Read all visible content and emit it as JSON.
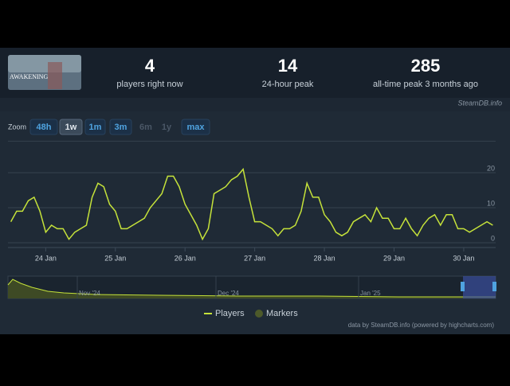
{
  "thumbnail": {
    "label": "AWAKENING"
  },
  "stats": [
    {
      "value": "4",
      "label": "players right now"
    },
    {
      "value": "14",
      "label": "24-hour peak"
    },
    {
      "value": "285",
      "label": "all-time peak 3 months ago"
    }
  ],
  "brand": "SteamDB.info",
  "zoom": {
    "label": "Zoom",
    "buttons": [
      "48h",
      "1w",
      "1m",
      "3m",
      "6m",
      "1y",
      "max"
    ],
    "active_index": 1,
    "disabled_indices": [
      4,
      5
    ]
  },
  "chart_data": {
    "type": "line",
    "x": [
      -12,
      -10,
      -8,
      -6,
      -4,
      -2,
      0,
      2,
      4,
      6,
      8,
      10,
      12,
      14,
      16,
      18,
      20,
      22,
      24,
      26,
      28,
      30,
      32,
      34,
      36,
      38,
      40,
      42,
      44,
      46,
      48,
      50,
      52,
      54,
      56,
      58,
      60,
      62,
      64,
      66,
      68,
      70,
      72,
      74,
      76,
      78,
      80,
      82,
      84,
      86,
      88,
      90,
      92,
      94,
      96,
      98,
      100,
      102,
      104,
      106,
      108,
      110,
      112,
      114,
      116,
      118,
      120,
      122,
      124,
      126,
      128,
      130,
      132,
      134,
      136,
      138,
      140,
      142,
      144,
      146,
      148,
      150,
      152,
      154
    ],
    "series": [
      {
        "name": "Players",
        "color": "#c5e23a",
        "values": [
          6,
          9,
          9,
          12,
          13,
          9,
          3,
          5,
          4,
          4,
          1,
          3,
          4,
          5,
          13,
          17,
          16,
          11,
          9,
          4,
          4,
          5,
          6,
          7,
          10,
          12,
          14,
          19,
          19,
          16,
          11,
          8,
          5,
          1,
          4,
          14,
          15,
          16,
          18,
          19,
          21,
          13,
          6,
          6,
          5,
          4,
          2,
          4,
          4,
          5,
          9,
          17,
          13,
          13,
          8,
          6,
          3,
          2,
          3,
          6,
          7,
          8,
          6,
          10,
          7,
          7,
          4,
          4,
          7,
          4,
          2,
          5,
          7,
          8,
          5,
          8,
          8,
          4,
          4,
          3,
          4,
          5,
          6,
          5
        ]
      }
    ],
    "xlim": [
      -13,
      155
    ],
    "xticks": [
      {
        "value": 0,
        "label": "24 Jan"
      },
      {
        "value": 24,
        "label": "25 Jan"
      },
      {
        "value": 48,
        "label": "26 Jan"
      },
      {
        "value": 72,
        "label": "27 Jan"
      },
      {
        "value": 96,
        "label": "28 Jan"
      },
      {
        "value": 120,
        "label": "29 Jan"
      },
      {
        "value": 144,
        "label": "30 Jan"
      }
    ],
    "ylim": [
      0,
      29
    ],
    "yticks": [
      0,
      10,
      20
    ],
    "grid": true,
    "navigator_labels": [
      "Nov '24",
      "Dec '24",
      "Jan '25"
    ],
    "markers_label": "Markers",
    "markers_color": "#4d5a2a",
    "credit": "data by SteamDB.info (powered by highcharts.com)"
  }
}
